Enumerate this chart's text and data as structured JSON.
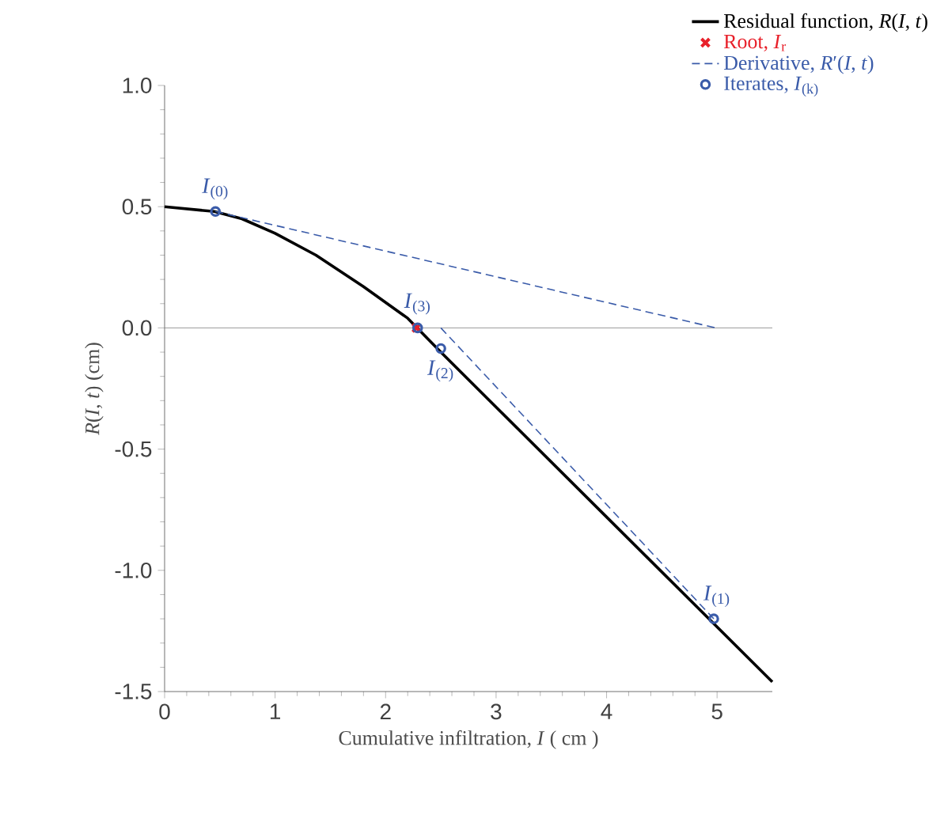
{
  "chart_data": {
    "type": "line",
    "xlabel": "Cumulative infiltration, *I* ( cm )",
    "ylabel": "*R*(*I*, *t*)  (cm)",
    "xlim": [
      0,
      5.5
    ],
    "xticks": [
      0,
      1,
      2,
      3,
      4,
      5
    ],
    "ylim": [
      -1.5,
      1.0
    ],
    "yticks": [
      -1.5,
      {
        "value": -1,
        "label": "-1.0"
      },
      -0.5,
      {
        "value": 0,
        "label": "0.0"
      },
      0.5,
      {
        "value": 1,
        "label": "1.0"
      }
    ],
    "grid": false,
    "legend": "top right",
    "ref_lines": [
      {
        "axis": "y",
        "value": 0,
        "color": "#808080",
        "line_style": "solid"
      }
    ],
    "series": [
      {
        "name": "Residual function, *R*(*I*, *t*)",
        "color": "#000000",
        "line_style": "solid",
        "marker": "none",
        "x": [
          0,
          0.45,
          0.7,
          1.0,
          1.37,
          1.8,
          2.2,
          2.5,
          5.5
        ],
        "values": [
          0.5,
          0.48,
          0.45,
          0.39,
          0.3,
          0.17,
          0.04,
          -0.1,
          -1.46
        ]
      },
      {
        "name": "Root, *I*$_{r}$",
        "type": "scatter",
        "color": "#e8202a",
        "marker": "cross",
        "x": [
          2.28
        ],
        "values": [
          0
        ]
      },
      {
        "name": "Derivative, *R*′(*I*, *t*)",
        "color": "#3a5ba9",
        "line_style": "dashed",
        "marker": "none",
        "x": [
          0.46,
          4.99,
          null,
          4.97,
          2.5
        ],
        "values": [
          0.48,
          0,
          null,
          -1.2,
          0
        ]
      },
      {
        "name": "Iterates, *I*$_{(k)}$",
        "type": "scatter",
        "color": "#3a5ba9",
        "marker": "circle",
        "x": [
          0.46,
          4.97,
          2.5,
          2.29
        ],
        "values": [
          0.48,
          -1.2,
          -0.085,
          0
        ]
      }
    ],
    "annotations": [
      {
        "text": "*I*$_{(0)}$",
        "x": 0.46,
        "y": 0.48
      },
      {
        "text": "*I*$_{(1)}$",
        "x": 4.97,
        "y": -1.2
      },
      {
        "text": "*I*$_{(2)}$",
        "x": 2.5,
        "y": -0.085
      },
      {
        "text": "*I*$_{(3)}$",
        "x": 2.29,
        "y": 0
      }
    ]
  }
}
